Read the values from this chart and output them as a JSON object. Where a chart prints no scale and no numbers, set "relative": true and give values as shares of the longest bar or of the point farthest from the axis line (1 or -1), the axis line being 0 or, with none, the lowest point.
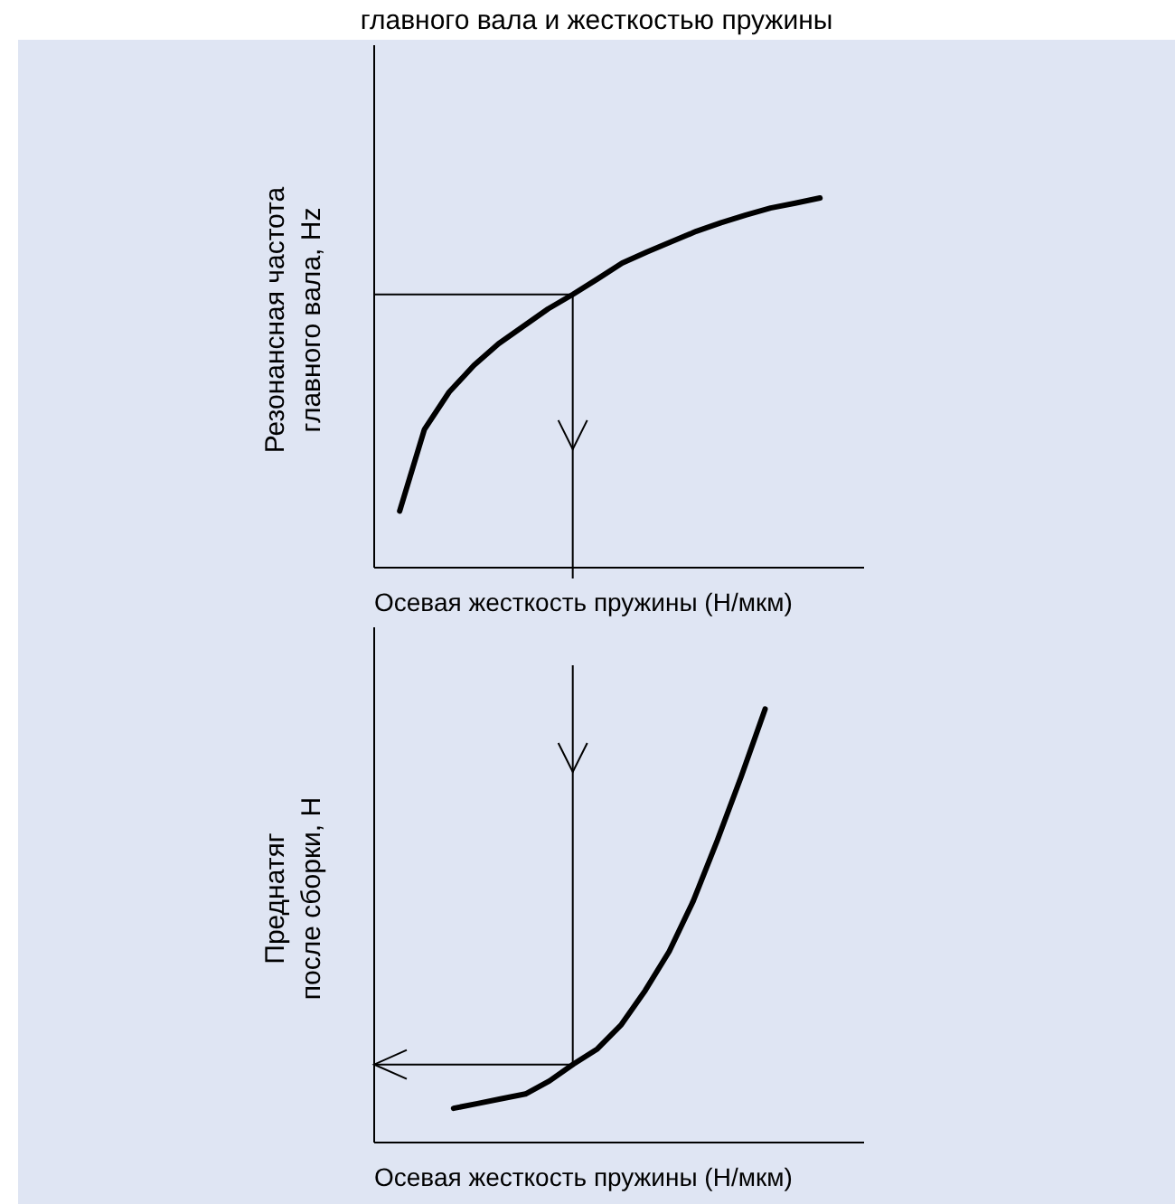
{
  "chart_data": [
    {
      "type": "line",
      "title": "главного вала и жесткостью пружины",
      "xlabel": "Осевая жесткость пружины (Н/мкм)",
      "ylabel": "Резонансная частота главного вала, Hz",
      "relative": true,
      "categories": [
        null,
        null,
        null,
        null,
        null,
        null,
        null,
        null,
        null,
        null,
        null,
        null,
        null,
        null,
        null,
        null,
        null,
        null
      ],
      "series": [
        {
          "color": "#000000",
          "values": [
            0.153,
            0.374,
            0.475,
            0.547,
            0.606,
            0.653,
            0.7,
            0.739,
            0.781,
            0.824,
            0.854,
            0.882,
            0.91,
            0.933,
            0.954,
            0.973,
            0.986,
            1
          ]
        }
      ],
      "ref_lines": [
        {
          "axis": "y",
          "value": 0.739,
          "color": "#000000"
        }
      ]
    },
    {
      "type": "line",
      "xlabel": "Осевая жесткость пружины (Н/мкм)",
      "ylabel": "Преднатяг после сборки, Н",
      "relative": true,
      "categories": [
        null,
        null,
        null,
        null,
        null,
        null,
        null,
        null,
        null,
        null,
        null,
        null,
        null,
        null
      ],
      "series": [
        {
          "color": "#000000",
          "values": [
            0.079,
            0.09,
            0.101,
            0.112,
            0.142,
            0.181,
            0.216,
            0.272,
            0.351,
            0.441,
            0.557,
            0.696,
            0.844,
            1
          ]
        }
      ],
      "ref_lines": [
        {
          "axis": "y",
          "value": 0.18,
          "color": "#000000"
        }
      ]
    }
  ]
}
